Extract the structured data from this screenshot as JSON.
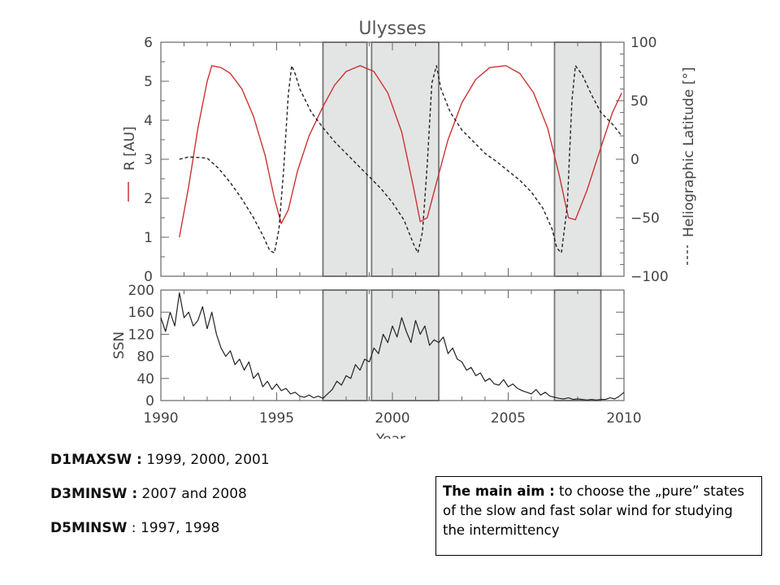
{
  "chart_data": [
    {
      "type": "line",
      "title": "Ulysses",
      "xlabel": "",
      "ylabel_left": "R [AU]",
      "ylabel_right": "Heliographic Latitude [°]",
      "xlim": [
        1990,
        2010
      ],
      "ylim_left": [
        0,
        6
      ],
      "ylim_right": [
        -100,
        100
      ],
      "yticks_left": [
        "0",
        "1",
        "2",
        "3",
        "4",
        "5",
        "6"
      ],
      "yticks_right": [
        "−100",
        "−50",
        "0",
        "50",
        "100"
      ],
      "shaded_intervals": [
        [
          1997.0,
          1998.9
        ],
        [
          1999.1,
          2002.0
        ],
        [
          2007.0,
          2009.0
        ]
      ],
      "series": [
        {
          "name": "R [AU]",
          "axis": "left",
          "color": "#cc3333",
          "style": "solid",
          "x": [
            1990.8,
            1991.2,
            1991.6,
            1992.0,
            1992.2,
            1992.6,
            1993.0,
            1993.5,
            1994.0,
            1994.5,
            1994.9,
            1995.2,
            1995.5,
            1995.9,
            1996.4,
            1997.0,
            1997.5,
            1998.0,
            1998.6,
            1999.2,
            1999.8,
            2000.4,
            2000.9,
            2001.2,
            2001.5,
            2001.9,
            2002.4,
            2003.0,
            2003.6,
            2004.2,
            2004.9,
            2005.5,
            2006.1,
            2006.7,
            2007.2,
            2007.6,
            2007.9,
            2008.4,
            2009.0,
            2009.5,
            2009.9
          ],
          "values": [
            1.0,
            2.3,
            3.8,
            5.0,
            5.4,
            5.35,
            5.2,
            4.8,
            4.1,
            3.1,
            2.0,
            1.35,
            1.7,
            2.7,
            3.6,
            4.35,
            4.9,
            5.25,
            5.4,
            5.25,
            4.7,
            3.7,
            2.3,
            1.4,
            1.5,
            2.4,
            3.5,
            4.45,
            5.05,
            5.35,
            5.4,
            5.2,
            4.7,
            3.8,
            2.6,
            1.5,
            1.45,
            2.2,
            3.3,
            4.2,
            4.7
          ]
        },
        {
          "name": "Heliographic Latitude [°]",
          "axis": "right",
          "color": "#222222",
          "style": "dashed",
          "x": [
            1990.8,
            1991.2,
            1992.0,
            1992.5,
            1993.0,
            1993.5,
            1994.0,
            1994.4,
            1994.7,
            1994.9,
            1995.1,
            1995.3,
            1995.5,
            1995.65,
            1995.8,
            1996.0,
            1996.5,
            1997.0,
            1997.5,
            1998.0,
            1998.5,
            1999.0,
            1999.5,
            2000.0,
            2000.5,
            2000.9,
            2001.1,
            2001.3,
            2001.5,
            2001.7,
            2001.9,
            2002.1,
            2002.5,
            2003.0,
            2003.5,
            2004.0,
            2004.5,
            2005.0,
            2005.5,
            2006.0,
            2006.5,
            2006.9,
            2007.1,
            2007.3,
            2007.55,
            2007.75,
            2007.9,
            2008.2,
            2008.6,
            2009.0,
            2009.5,
            2009.9
          ],
          "values": [
            0,
            2,
            1,
            -8,
            -20,
            -34,
            -50,
            -65,
            -78,
            -80,
            -60,
            -10,
            55,
            80,
            73,
            60,
            40,
            27,
            15,
            5,
            -5,
            -15,
            -25,
            -37,
            -52,
            -72,
            -80,
            -62,
            -5,
            65,
            80,
            60,
            40,
            25,
            15,
            5,
            -2,
            -10,
            -18,
            -28,
            -42,
            -60,
            -76,
            -80,
            -40,
            50,
            80,
            72,
            55,
            40,
            30,
            20
          ]
        }
      ]
    },
    {
      "type": "line",
      "title": "",
      "xlabel": "Year",
      "ylabel": "SSN",
      "xlim": [
        1990,
        2010
      ],
      "ylim": [
        0,
        200
      ],
      "xticks": [
        "1990",
        "1995",
        "2000",
        "2005",
        "2010"
      ],
      "yticks": [
        "0",
        "40",
        "80",
        "120",
        "160",
        "200"
      ],
      "shaded_intervals": [
        [
          1997.0,
          1998.9
        ],
        [
          1999.1,
          2002.0
        ],
        [
          2007.0,
          2009.0
        ]
      ],
      "series": [
        {
          "name": "SSN",
          "color": "#222222",
          "x": [
            1990.0,
            1990.2,
            1990.4,
            1990.6,
            1990.8,
            1991.0,
            1991.2,
            1991.4,
            1991.6,
            1991.8,
            1992.0,
            1992.2,
            1992.4,
            1992.6,
            1992.8,
            1993.0,
            1993.2,
            1993.4,
            1993.6,
            1993.8,
            1994.0,
            1994.2,
            1994.4,
            1994.6,
            1994.8,
            1995.0,
            1995.2,
            1995.4,
            1995.6,
            1995.8,
            1996.0,
            1996.2,
            1996.4,
            1996.6,
            1996.8,
            1997.0,
            1997.2,
            1997.4,
            1997.6,
            1997.8,
            1998.0,
            1998.2,
            1998.4,
            1998.6,
            1998.8,
            1999.0,
            1999.2,
            1999.4,
            1999.6,
            1999.8,
            2000.0,
            2000.2,
            2000.4,
            2000.6,
            2000.8,
            2001.0,
            2001.2,
            2001.4,
            2001.6,
            2001.8,
            2002.0,
            2002.2,
            2002.4,
            2002.6,
            2002.8,
            2003.0,
            2003.2,
            2003.4,
            2003.6,
            2003.8,
            2004.0,
            2004.2,
            2004.4,
            2004.6,
            2004.8,
            2005.0,
            2005.2,
            2005.4,
            2005.6,
            2005.8,
            2006.0,
            2006.2,
            2006.4,
            2006.6,
            2006.8,
            2007.0,
            2007.2,
            2007.4,
            2007.6,
            2007.8,
            2008.0,
            2008.2,
            2008.4,
            2008.6,
            2008.8,
            2009.0,
            2009.2,
            2009.4,
            2009.6,
            2009.8,
            2010.0
          ],
          "values": [
            150,
            125,
            160,
            135,
            195,
            150,
            160,
            135,
            145,
            170,
            130,
            160,
            120,
            95,
            80,
            90,
            65,
            75,
            55,
            70,
            40,
            50,
            25,
            35,
            20,
            30,
            18,
            22,
            12,
            15,
            8,
            6,
            10,
            5,
            8,
            4,
            12,
            20,
            35,
            28,
            45,
            40,
            65,
            55,
            75,
            70,
            95,
            85,
            120,
            105,
            135,
            115,
            150,
            125,
            105,
            145,
            120,
            135,
            100,
            110,
            105,
            115,
            85,
            95,
            75,
            70,
            55,
            60,
            45,
            50,
            35,
            40,
            30,
            28,
            38,
            25,
            30,
            22,
            18,
            15,
            12,
            20,
            10,
            15,
            8,
            6,
            4,
            3,
            5,
            2,
            3,
            2,
            1,
            2,
            1,
            2,
            2,
            5,
            3,
            8,
            15
          ]
        }
      ]
    }
  ],
  "captions": [
    {
      "key": "D1MAXSW :",
      "text": " 1999, 2000, 2001"
    },
    {
      "key": "D3MINSW :",
      "text": " 2007 and 2008"
    },
    {
      "key": "D5MINSW",
      "text": " : 1997, 1998"
    }
  ],
  "aim_box": {
    "key": "The main aim :",
    "text": " to choose  the „pure” states of the slow and fast solar wind for studying the intermittency"
  }
}
